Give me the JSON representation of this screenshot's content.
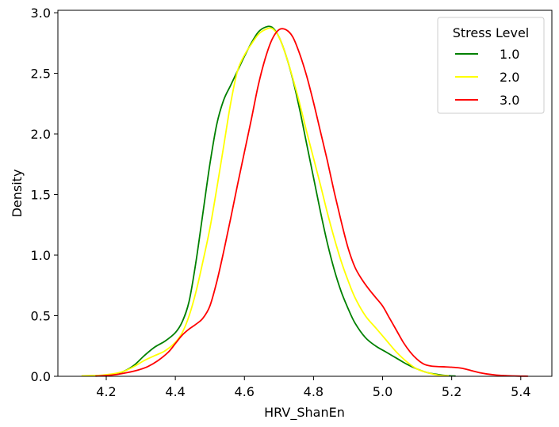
{
  "chart_data": {
    "type": "line",
    "title": "",
    "xlabel": "HRV_ShanEn",
    "ylabel": "Density",
    "xlim": [
      4.06,
      5.49
    ],
    "ylim": [
      0.0,
      3.02
    ],
    "xticks": [
      4.2,
      4.4,
      4.6,
      4.8,
      5.0,
      5.2,
      5.4
    ],
    "xtick_labels": [
      "4.2",
      "4.4",
      "4.6",
      "4.8",
      "5.0",
      "5.2",
      "5.4"
    ],
    "yticks": [
      0.0,
      0.5,
      1.0,
      1.5,
      2.0,
      2.5,
      3.0
    ],
    "ytick_labels": [
      "0.0",
      "0.5",
      "1.0",
      "1.5",
      "2.0",
      "2.5",
      "3.0"
    ],
    "grid": false,
    "legend": {
      "title": "Stress Level",
      "placement": "top-right"
    },
    "series": [
      {
        "name": "1.0",
        "color": "#008000",
        "x": [
          4.19,
          4.22,
          4.25,
          4.28,
          4.31,
          4.34,
          4.37,
          4.4,
          4.42,
          4.44,
          4.46,
          4.48,
          4.5,
          4.52,
          4.54,
          4.56,
          4.58,
          4.6,
          4.62,
          4.64,
          4.66,
          4.68,
          4.7,
          4.72,
          4.74,
          4.76,
          4.78,
          4.8,
          4.82,
          4.84,
          4.86,
          4.88,
          4.9,
          4.92,
          4.95,
          4.98,
          5.01,
          5.04,
          5.07,
          5.1,
          5.13,
          5.16,
          5.19,
          5.21
        ],
        "y": [
          0.005,
          0.015,
          0.04,
          0.09,
          0.17,
          0.24,
          0.29,
          0.36,
          0.45,
          0.62,
          0.95,
          1.35,
          1.75,
          2.08,
          2.28,
          2.4,
          2.52,
          2.64,
          2.75,
          2.84,
          2.88,
          2.88,
          2.8,
          2.65,
          2.45,
          2.2,
          1.92,
          1.64,
          1.36,
          1.1,
          0.88,
          0.7,
          0.56,
          0.44,
          0.32,
          0.25,
          0.2,
          0.15,
          0.1,
          0.06,
          0.03,
          0.015,
          0.005,
          0.002
        ]
      },
      {
        "name": "2.0",
        "color": "#ffff00",
        "x": [
          4.13,
          4.16,
          4.19,
          4.22,
          4.25,
          4.28,
          4.31,
          4.34,
          4.37,
          4.4,
          4.42,
          4.44,
          4.46,
          4.48,
          4.5,
          4.52,
          4.54,
          4.56,
          4.58,
          4.6,
          4.62,
          4.64,
          4.66,
          4.68,
          4.7,
          4.72,
          4.74,
          4.76,
          4.78,
          4.8,
          4.82,
          4.84,
          4.86,
          4.88,
          4.9,
          4.92,
          4.95,
          4.98,
          5.01,
          5.04,
          5.07,
          5.1,
          5.13,
          5.16,
          5.19
        ],
        "y": [
          0.004,
          0.006,
          0.01,
          0.02,
          0.04,
          0.08,
          0.13,
          0.17,
          0.21,
          0.28,
          0.36,
          0.5,
          0.7,
          0.95,
          1.22,
          1.55,
          1.9,
          2.25,
          2.52,
          2.65,
          2.74,
          2.82,
          2.86,
          2.87,
          2.8,
          2.65,
          2.46,
          2.25,
          2.02,
          1.8,
          1.58,
          1.35,
          1.14,
          0.95,
          0.79,
          0.65,
          0.5,
          0.4,
          0.3,
          0.2,
          0.12,
          0.06,
          0.03,
          0.01,
          0.004
        ]
      },
      {
        "name": "3.0",
        "color": "#ff0000",
        "x": [
          4.17,
          4.2,
          4.23,
          4.26,
          4.29,
          4.32,
          4.35,
          4.38,
          4.4,
          4.42,
          4.44,
          4.46,
          4.48,
          4.5,
          4.52,
          4.54,
          4.56,
          4.58,
          4.6,
          4.62,
          4.64,
          4.66,
          4.68,
          4.7,
          4.72,
          4.74,
          4.76,
          4.78,
          4.8,
          4.82,
          4.84,
          4.86,
          4.88,
          4.9,
          4.92,
          4.94,
          4.96,
          4.98,
          5.0,
          5.02,
          5.04,
          5.06,
          5.08,
          5.1,
          5.12,
          5.14,
          5.16,
          5.18,
          5.2,
          5.22,
          5.24,
          5.26,
          5.28,
          5.3,
          5.33,
          5.36,
          5.39,
          5.42
        ],
        "y": [
          0.002,
          0.006,
          0.015,
          0.03,
          0.05,
          0.08,
          0.13,
          0.2,
          0.27,
          0.34,
          0.39,
          0.43,
          0.48,
          0.58,
          0.78,
          1.03,
          1.3,
          1.58,
          1.85,
          2.12,
          2.4,
          2.62,
          2.78,
          2.86,
          2.86,
          2.8,
          2.66,
          2.48,
          2.26,
          2.02,
          1.78,
          1.52,
          1.28,
          1.06,
          0.9,
          0.8,
          0.72,
          0.65,
          0.58,
          0.48,
          0.38,
          0.28,
          0.2,
          0.14,
          0.1,
          0.085,
          0.08,
          0.078,
          0.075,
          0.07,
          0.06,
          0.045,
          0.03,
          0.02,
          0.01,
          0.005,
          0.002,
          0.001
        ]
      }
    ]
  }
}
